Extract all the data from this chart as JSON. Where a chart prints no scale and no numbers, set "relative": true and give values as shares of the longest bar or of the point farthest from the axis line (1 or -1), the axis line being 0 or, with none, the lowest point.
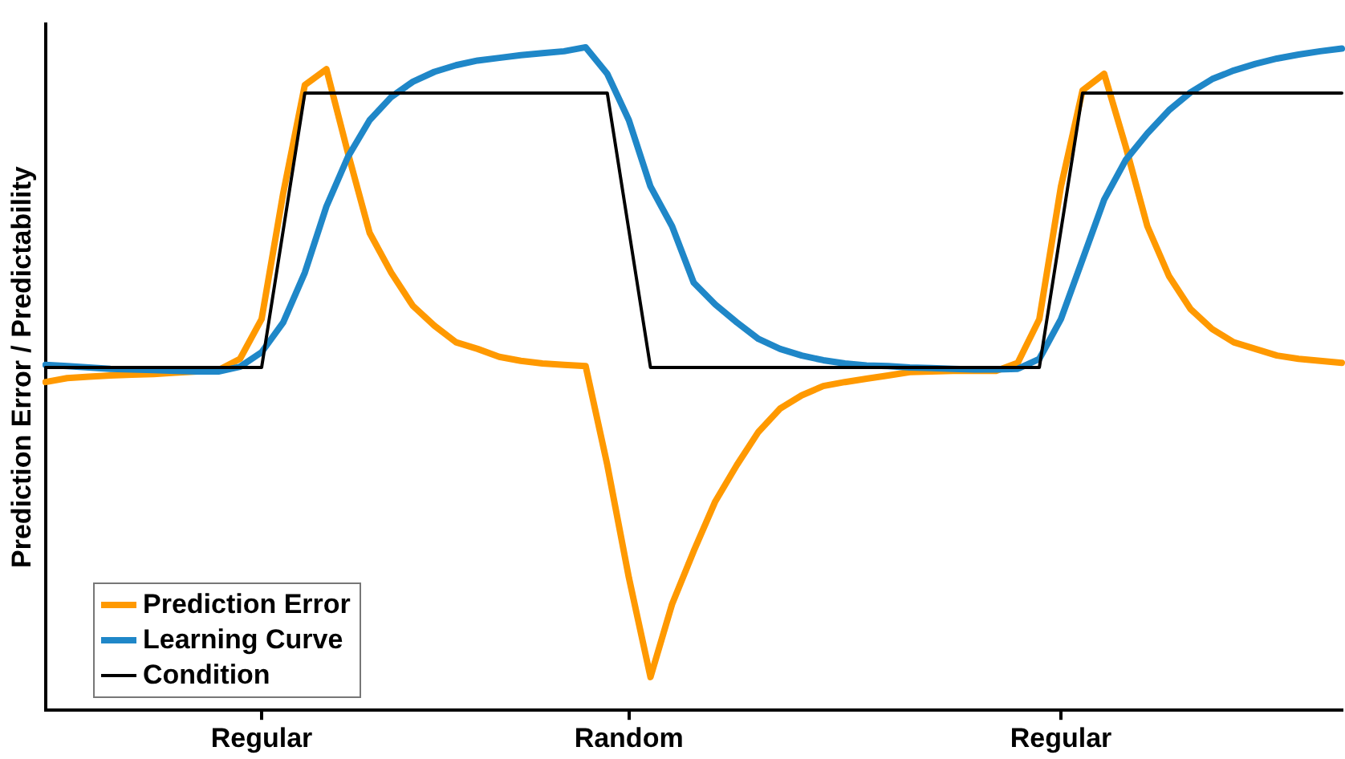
{
  "chart_data": {
    "type": "line",
    "ylabel": "Prediction Error / Predictability",
    "relative": true,
    "legend": "bottom left",
    "marker": "none",
    "grid": false,
    "categories": [
      null,
      null,
      null,
      null,
      null,
      null,
      null,
      null,
      null,
      null,
      "Regular",
      null,
      null,
      null,
      null,
      null,
      null,
      null,
      null,
      null,
      null,
      null,
      null,
      null,
      null,
      null,
      null,
      "Random",
      null,
      null,
      null,
      null,
      null,
      null,
      null,
      null,
      null,
      null,
      null,
      null,
      null,
      null,
      null,
      null,
      null,
      null,
      null,
      "Regular",
      null,
      null,
      null,
      null,
      null,
      null,
      null,
      null,
      null,
      null,
      null,
      null,
      null
    ],
    "series": [
      {
        "name": "Prediction Error",
        "color": "#ff9900",
        "values": [
          0.495,
          0.501,
          0.503,
          0.505,
          0.506,
          0.507,
          0.509,
          0.511,
          0.513,
          0.53,
          0.59,
          0.78,
          0.943,
          0.967,
          0.84,
          0.72,
          0.66,
          0.61,
          0.58,
          0.555,
          0.545,
          0.533,
          0.527,
          0.523,
          0.521,
          0.519,
          0.37,
          0.2,
          0.05,
          0.16,
          0.24,
          0.315,
          0.37,
          0.42,
          0.455,
          0.475,
          0.489,
          0.495,
          0.5,
          0.505,
          0.51,
          0.511,
          0.512,
          0.512,
          0.512,
          0.524,
          0.59,
          0.79,
          0.935,
          0.96,
          0.85,
          0.73,
          0.655,
          0.605,
          0.575,
          0.555,
          0.545,
          0.535,
          0.53,
          0.527,
          0.524
        ]
      },
      {
        "name": "Learning Curve",
        "color": "#1f87c8",
        "values": [
          0.521,
          0.519,
          0.517,
          0.515,
          0.514,
          0.513,
          0.512,
          0.511,
          0.511,
          0.518,
          0.54,
          0.585,
          0.66,
          0.76,
          0.835,
          0.89,
          0.925,
          0.948,
          0.963,
          0.973,
          0.98,
          0.984,
          0.988,
          0.991,
          0.994,
          1,
          0.96,
          0.89,
          0.79,
          0.73,
          0.645,
          0.612,
          0.585,
          0.56,
          0.545,
          0.535,
          0.528,
          0.523,
          0.52,
          0.519,
          0.517,
          0.516,
          0.515,
          0.514,
          0.514,
          0.515,
          0.53,
          0.59,
          0.68,
          0.77,
          0.83,
          0.87,
          0.905,
          0.932,
          0.952,
          0.965,
          0.975,
          0.983,
          0.989,
          0.994,
          0.998
        ]
      },
      {
        "name": "Condition",
        "color": "#000000",
        "values": [
          0.517,
          0.517,
          0.517,
          0.517,
          0.517,
          0.517,
          0.517,
          0.517,
          0.517,
          0.517,
          0.517,
          0.724,
          0.931,
          0.931,
          0.931,
          0.931,
          0.931,
          0.931,
          0.931,
          0.931,
          0.931,
          0.931,
          0.931,
          0.931,
          0.931,
          0.931,
          0.931,
          0.724,
          0.517,
          0.517,
          0.517,
          0.517,
          0.517,
          0.517,
          0.517,
          0.517,
          0.517,
          0.517,
          0.517,
          0.517,
          0.517,
          0.517,
          0.517,
          0.517,
          0.517,
          0.517,
          0.517,
          0.724,
          0.931,
          0.931,
          0.931,
          0.931,
          0.931,
          0.931,
          0.931,
          0.931,
          0.931,
          0.931,
          0.931,
          0.931,
          0.931
        ]
      }
    ]
  }
}
